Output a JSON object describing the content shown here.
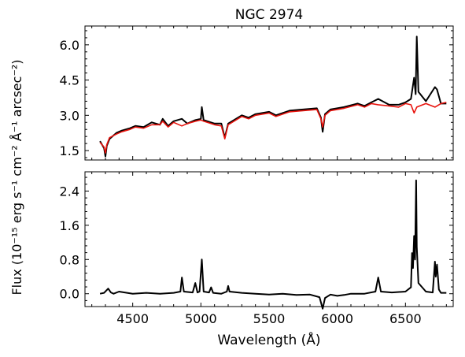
{
  "figure": {
    "title": "NGC 2974",
    "xlabel": "Wavelength (Å)",
    "ylabel": "Flux (10⁻¹⁵ erg s⁻¹ cm⁻² Å⁻¹ arcsec⁻²)"
  },
  "colors": {
    "observed": "#000000",
    "model": "#e8120c",
    "axes": "#000000"
  },
  "chart_data": [
    {
      "type": "line",
      "panel": "top",
      "title": "NGC 2974",
      "xlim": [
        4150,
        6850
      ],
      "ylim": [
        1.1,
        6.8
      ],
      "x_ticks": [
        4500,
        5000,
        5500,
        6000,
        6500
      ],
      "y_ticks": [
        1.5,
        3.0,
        4.5,
        6.0
      ],
      "y_tick_labels": [
        "1.5",
        "3.0",
        "4.5",
        "6.0"
      ],
      "series": [
        {
          "color": "#000000",
          "x": [
            4260,
            4290,
            4300,
            4310,
            4330,
            4380,
            4420,
            4480,
            4520,
            4580,
            4640,
            4700,
            4720,
            4760,
            4800,
            4860,
            4900,
            4960,
            5000,
            5007,
            5020,
            5100,
            5150,
            5175,
            5200,
            5300,
            5350,
            5400,
            5500,
            5550,
            5650,
            5750,
            5850,
            5880,
            5893,
            5910,
            5950,
            6050,
            6150,
            6200,
            6250,
            6300,
            6380,
            6450,
            6500,
            6540,
            6563,
            6575,
            6583,
            6595,
            6650,
            6716,
            6731,
            6760,
            6800
          ],
          "y": [
            1.9,
            1.6,
            1.25,
            1.7,
            2.0,
            2.25,
            2.35,
            2.45,
            2.55,
            2.5,
            2.7,
            2.6,
            2.85,
            2.55,
            2.75,
            2.85,
            2.65,
            2.8,
            2.85,
            3.35,
            2.8,
            2.65,
            2.65,
            2.05,
            2.65,
            3.0,
            2.9,
            3.05,
            3.15,
            3.0,
            3.2,
            3.25,
            3.3,
            2.9,
            2.3,
            3.05,
            3.25,
            3.35,
            3.5,
            3.4,
            3.55,
            3.7,
            3.45,
            3.45,
            3.55,
            3.7,
            4.6,
            3.9,
            6.35,
            4.0,
            3.6,
            4.2,
            4.1,
            3.5,
            3.5
          ]
        },
        {
          "color": "#e8120c",
          "x": [
            4260,
            4290,
            4300,
            4310,
            4330,
            4380,
            4420,
            4480,
            4520,
            4580,
            4640,
            4700,
            4720,
            4760,
            4800,
            4860,
            4900,
            4960,
            5000,
            5020,
            5100,
            5150,
            5175,
            5200,
            5300,
            5350,
            5400,
            5500,
            5550,
            5650,
            5750,
            5850,
            5880,
            5893,
            5910,
            5950,
            6050,
            6150,
            6200,
            6250,
            6300,
            6380,
            6450,
            6500,
            6540,
            6563,
            6583,
            6650,
            6716,
            6731,
            6760,
            6800
          ],
          "y": [
            1.85,
            1.65,
            1.4,
            1.75,
            2.05,
            2.2,
            2.3,
            2.4,
            2.5,
            2.45,
            2.6,
            2.6,
            2.75,
            2.5,
            2.7,
            2.55,
            2.65,
            2.75,
            2.8,
            2.75,
            2.6,
            2.55,
            2.0,
            2.6,
            2.95,
            2.85,
            3.0,
            3.1,
            2.95,
            3.15,
            3.2,
            3.25,
            2.85,
            2.5,
            3.0,
            3.2,
            3.3,
            3.45,
            3.35,
            3.5,
            3.45,
            3.4,
            3.35,
            3.5,
            3.45,
            3.1,
            3.35,
            3.5,
            3.35,
            3.4,
            3.5,
            3.55
          ]
        }
      ]
    },
    {
      "type": "line",
      "panel": "bottom",
      "xlim": [
        4150,
        6850
      ],
      "ylim": [
        -0.3,
        2.85
      ],
      "x_ticks": [
        4500,
        5000,
        5500,
        6000,
        6500
      ],
      "x_tick_labels": [
        "4500",
        "5000",
        "5500",
        "6000",
        "6500"
      ],
      "y_ticks": [
        0.0,
        0.8,
        1.6,
        2.4
      ],
      "y_tick_labels": [
        "0.0",
        "0.8",
        "1.6",
        "2.4"
      ],
      "series": [
        {
          "color": "#000000",
          "x": [
            4260,
            4290,
            4320,
            4340,
            4360,
            4400,
            4500,
            4600,
            4700,
            4800,
            4850,
            4861,
            4875,
            4940,
            4959,
            4975,
            4990,
            5007,
            5020,
            5060,
            5075,
            5090,
            5150,
            5190,
            5200,
            5210,
            5300,
            5400,
            5500,
            5600,
            5700,
            5800,
            5870,
            5893,
            5910,
            5950,
            6000,
            6050,
            6100,
            6200,
            6280,
            6300,
            6320,
            6400,
            6500,
            6540,
            6548,
            6555,
            6563,
            6570,
            6578,
            6583,
            6595,
            6650,
            6700,
            6716,
            6722,
            6731,
            6745,
            6760,
            6800
          ],
          "y": [
            0.0,
            0.02,
            0.12,
            0.03,
            0.0,
            0.05,
            0.0,
            0.02,
            0.0,
            0.02,
            0.05,
            0.38,
            0.05,
            0.03,
            0.25,
            0.03,
            0.05,
            0.8,
            0.05,
            0.03,
            0.15,
            0.02,
            0.0,
            0.05,
            0.18,
            0.05,
            0.02,
            0.0,
            -0.02,
            0.0,
            -0.03,
            -0.02,
            -0.08,
            -0.35,
            -0.1,
            -0.02,
            -0.05,
            -0.03,
            0.0,
            0.0,
            0.05,
            0.38,
            0.05,
            0.03,
            0.05,
            0.15,
            0.95,
            0.6,
            1.35,
            0.8,
            2.65,
            1.1,
            0.25,
            0.05,
            0.03,
            0.75,
            0.4,
            0.68,
            0.1,
            0.02,
            0.02
          ]
        }
      ]
    }
  ]
}
